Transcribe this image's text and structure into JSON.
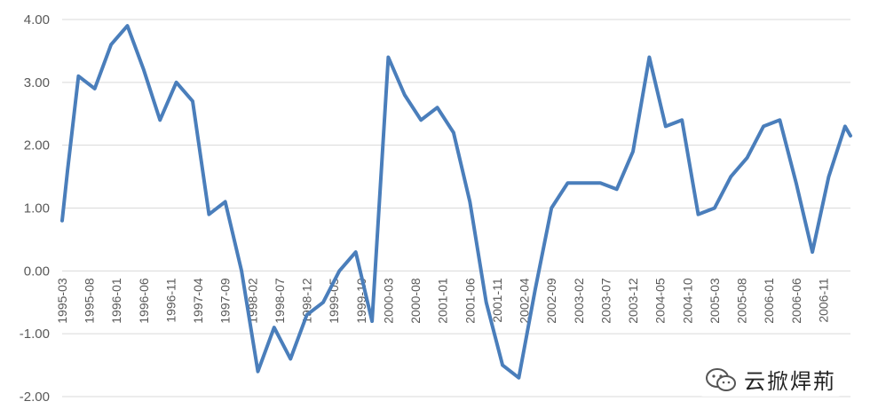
{
  "chart_data": {
    "type": "line",
    "title": "",
    "xlabel": "",
    "ylabel": "",
    "ylim": [
      -2,
      4
    ],
    "yticks": [
      "4.00",
      "3.00",
      "2.00",
      "1.00",
      "0.00",
      "-1.00",
      "-2.00"
    ],
    "x_tick_labels": [
      "1995-03",
      "1995-08",
      "1996-01",
      "1996-06",
      "1996-11",
      "1997-04",
      "1997-09",
      "1998-02",
      "1998-07",
      "1998-12",
      "1999-05",
      "1999-10",
      "2000-03",
      "2000-08",
      "2001-01",
      "2001-06",
      "2001-11",
      "2002-04",
      "2002-09",
      "2003-02",
      "2003-07",
      "2003-12",
      "2004-05",
      "2004-10",
      "2005-03",
      "2005-08",
      "2006-01",
      "2006-06",
      "2006-11"
    ],
    "grid": true,
    "line_color": "#4a7ebb",
    "series": [
      {
        "name": "",
        "points": [
          [
            "1995-03",
            0.8
          ],
          [
            "1995-04",
            1.6
          ],
          [
            "1995-06",
            3.1
          ],
          [
            "1995-09",
            2.9
          ],
          [
            "1995-12",
            3.6
          ],
          [
            "1996-03",
            3.9
          ],
          [
            "1996-06",
            3.2
          ],
          [
            "1996-09",
            2.4
          ],
          [
            "1996-12",
            3.0
          ],
          [
            "1997-03",
            2.7
          ],
          [
            "1997-06",
            0.9
          ],
          [
            "1997-09",
            1.1
          ],
          [
            "1997-12",
            0.0
          ],
          [
            "1998-03",
            -1.6
          ],
          [
            "1998-06",
            -0.9
          ],
          [
            "1998-09",
            -1.4
          ],
          [
            "1998-12",
            -0.7
          ],
          [
            "1999-03",
            -0.5
          ],
          [
            "1999-06",
            0.0
          ],
          [
            "1999-09",
            0.3
          ],
          [
            "1999-12",
            -0.8
          ],
          [
            "2000-03",
            3.4
          ],
          [
            "2000-06",
            2.8
          ],
          [
            "2000-09",
            2.4
          ],
          [
            "2000-12",
            2.6
          ],
          [
            "2001-03",
            2.2
          ],
          [
            "2001-06",
            1.1
          ],
          [
            "2001-09",
            -0.5
          ],
          [
            "2001-12",
            -1.5
          ],
          [
            "2002-03",
            -1.7
          ],
          [
            "2002-06",
            -0.3
          ],
          [
            "2002-09",
            1.0
          ],
          [
            "2002-12",
            1.4
          ],
          [
            "2003-03",
            1.4
          ],
          [
            "2003-06",
            1.4
          ],
          [
            "2003-09",
            1.3
          ],
          [
            "2003-12",
            1.9
          ],
          [
            "2004-03",
            3.4
          ],
          [
            "2004-06",
            2.3
          ],
          [
            "2004-09",
            2.4
          ],
          [
            "2004-12",
            0.9
          ],
          [
            "2005-03",
            1.0
          ],
          [
            "2005-06",
            1.5
          ],
          [
            "2005-09",
            1.8
          ],
          [
            "2005-12",
            2.3
          ],
          [
            "2006-03",
            2.4
          ],
          [
            "2006-06",
            1.4
          ],
          [
            "2006-09",
            0.3
          ],
          [
            "2006-12",
            1.5
          ],
          [
            "2007-03",
            2.3
          ],
          [
            "2007-04",
            2.15
          ]
        ]
      }
    ]
  },
  "watermark": {
    "text": "云掀焊荊",
    "icon": "wechat-icon"
  }
}
